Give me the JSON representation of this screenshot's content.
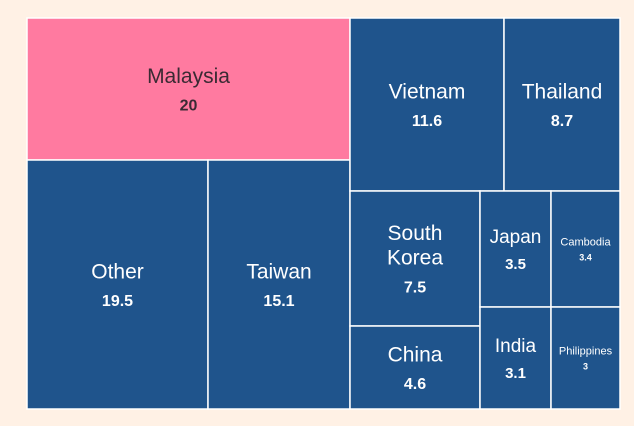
{
  "chart_data": {
    "type": "treemap",
    "title": "",
    "colors": {
      "background": "#fff1e5",
      "highlight": "#ff7aa0",
      "default": "#1f548c",
      "highlight_text": "#3a2a33",
      "default_text": "#ffffff",
      "border": "#ffffff"
    },
    "cells": [
      {
        "name": "Malaysia",
        "value": 20,
        "display": "20",
        "highlight": true
      },
      {
        "name": "Other",
        "value": 19.5,
        "display": "19.5",
        "highlight": false
      },
      {
        "name": "Taiwan",
        "value": 15.1,
        "display": "15.1",
        "highlight": false
      },
      {
        "name": "Vietnam",
        "value": 11.6,
        "display": "11.6",
        "highlight": false
      },
      {
        "name": "Thailand",
        "value": 8.7,
        "display": "8.7",
        "highlight": false
      },
      {
        "name": "South Korea",
        "value": 7.5,
        "display": "7.5",
        "highlight": false
      },
      {
        "name": "China",
        "value": 4.6,
        "display": "4.6",
        "highlight": false
      },
      {
        "name": "Japan",
        "value": 3.5,
        "display": "3.5",
        "highlight": false
      },
      {
        "name": "Cambodia",
        "value": 3.4,
        "display": "3.4",
        "highlight": false
      },
      {
        "name": "India",
        "value": 3.1,
        "display": "3.1",
        "highlight": false
      },
      {
        "name": "Philippines",
        "value": 3,
        "display": "3",
        "highlight": false
      }
    ]
  }
}
